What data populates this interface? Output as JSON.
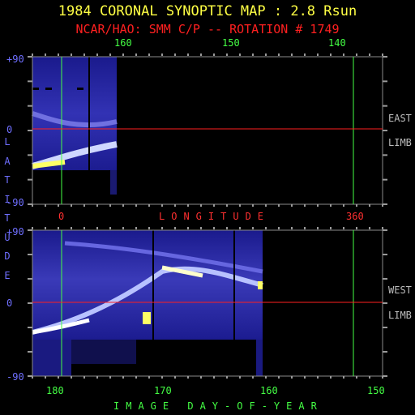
{
  "title": "1984 CORONAL SYNOPTIC MAP : 2.8 Rsun",
  "subtitle": "NCAR/HAO: SMM C/P -- ROTATION # 1749",
  "colors": {
    "title": "#ffff44",
    "subtitle": "#ff2020",
    "green": "#44ff44",
    "red": "#ff3030",
    "blue": "#6f6fff",
    "frame": "#8a8a8a"
  },
  "top_axis_labels": [
    "160",
    "150",
    "140"
  ],
  "longitude_axis": {
    "label": "LONGITUDE",
    "start": "0",
    "end": "360"
  },
  "latitude_axis": {
    "label": "LATITUDE",
    "top": "+90",
    "zero": "0",
    "bottom": "-90"
  },
  "doy_axis": {
    "label": "IMAGE DAY-OF-YEAR",
    "ticks": [
      "180",
      "170",
      "160",
      "150"
    ]
  },
  "panel_labels": {
    "east": [
      "EAST",
      "LIMB"
    ],
    "west": [
      "WEST",
      "LIMB"
    ]
  },
  "chart_data": [
    {
      "type": "heatmap",
      "panel": "east-limb",
      "title": "1984 CORONAL SYNOPTIC MAP : 2.8 Rsun",
      "xlabel": "LONGITUDE",
      "ylabel": "LATITUDE",
      "x_range": [
        0,
        360
      ],
      "ylim": [
        -90,
        90
      ],
      "top_axis_ticks": [
        160,
        150,
        140
      ],
      "data_extent_deg": [
        0,
        65
      ],
      "streamer_belt_latitude": [
        -25,
        -15,
        -5
      ]
    },
    {
      "type": "heatmap",
      "panel": "west-limb",
      "xlabel": "IMAGE DAY-OF-YEAR",
      "ylabel": "LATITUDE",
      "x_ticks": [
        180,
        170,
        160,
        150
      ],
      "ylim": [
        -90,
        90
      ],
      "data_extent_deg": [
        0,
        200
      ],
      "streamer_belt_latitude": [
        -20,
        10,
        30
      ]
    }
  ]
}
